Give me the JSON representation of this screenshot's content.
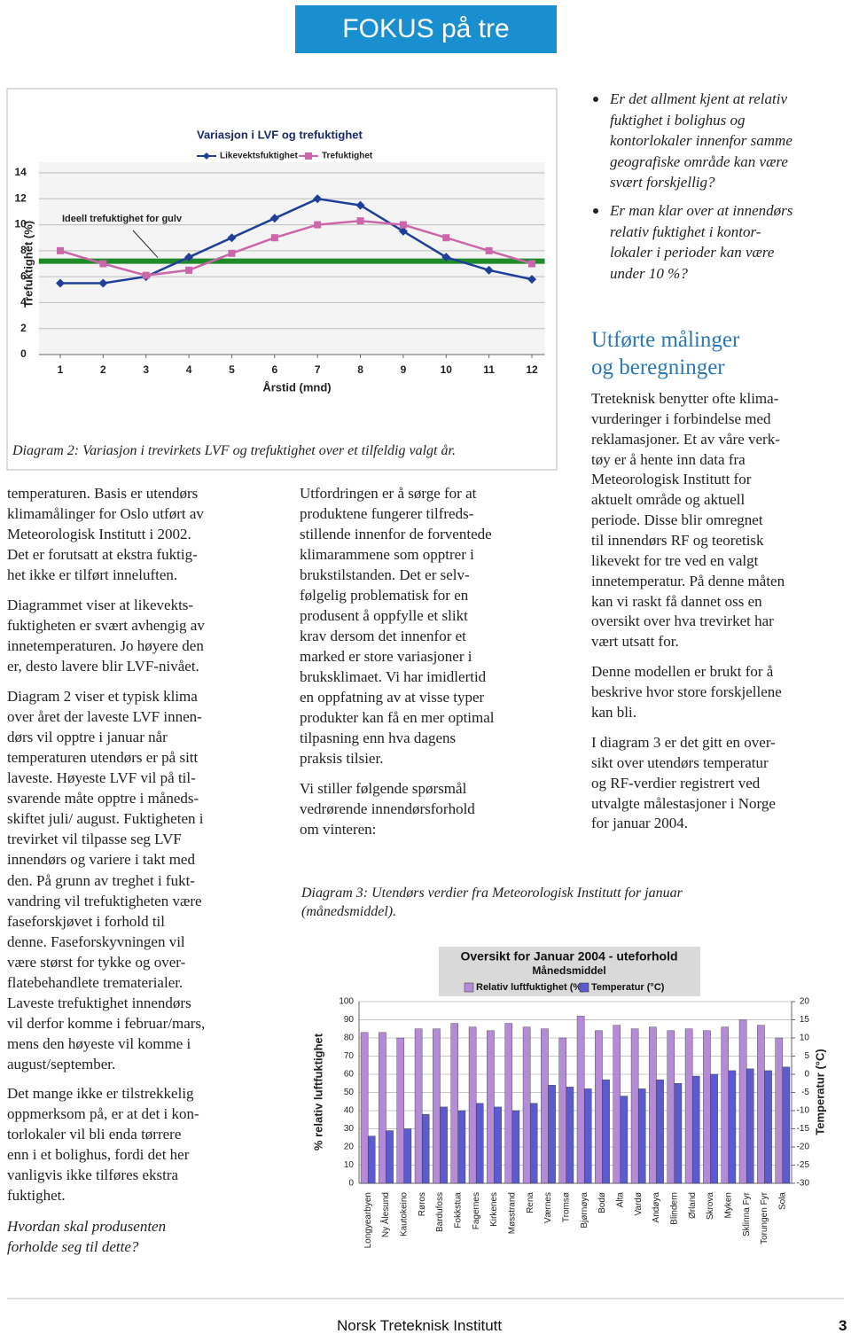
{
  "header": {
    "title": "FOKUS på tre"
  },
  "questions": [
    [
      "Er det allment kjent at relativ",
      "fuktighet i bolighus og",
      "kontorlokaler innenfor samme",
      "geografiske område kan være",
      "svært forskjellig?"
    ],
    [
      "Er man klar over at innendørs",
      "relativ fuktighet i kontor-",
      "lokaler i perioder kan være",
      "under 10 %?"
    ]
  ],
  "section": {
    "heading": [
      "Utførte målinger",
      "og beregninger"
    ],
    "paragraphs": [
      [
        "Treteknisk benytter ofte klima-",
        "vurderinger i forbindelse med",
        "reklamasjoner. Et av våre verk-",
        "tøy er å hente inn data fra",
        "Meteorologisk Institutt for",
        "aktuelt område og aktuell",
        "periode. Disse blir omregnet",
        "til innendørs RF og teoretisk",
        "likevekt for tre ved en valgt",
        "innetemperatur. På denne måten",
        "kan vi raskt få dannet oss en",
        "oversikt over hva trevirket har",
        "vært utsatt for."
      ],
      [
        "Denne modellen er brukt for å",
        "beskrive hvor store forskjellene",
        "kan bli."
      ],
      [
        "I diagram 3 er det gitt en over-",
        "sikt over utendørs temperatur",
        "og RF-verdier registrert ved",
        "utvalgte målestasjoner i Norge",
        "for januar 2004."
      ]
    ]
  },
  "left_column": {
    "paragraphs": [
      [
        "temperaturen. Basis er utendørs",
        "klimamålinger for Oslo utført av",
        "Meteorologisk Institutt i 2002.",
        "Det er forutsatt at ekstra fuktig-",
        "het ikke er tilført inneluften."
      ],
      [
        "Diagrammet viser at likevekts-",
        "fuktigheten er svært avhengig av",
        "innetemperaturen. Jo høyere den",
        "er, desto lavere blir LVF-nivået."
      ],
      [
        "Diagram 2 viser et typisk klima",
        "over året der laveste LVF innen-",
        "dørs vil opptre i januar når",
        "temperaturen utendørs er på sitt",
        "laveste. Høyeste LVF vil på til-",
        "svarende måte opptre i måneds-",
        "skiftet juli/ august. Fuktigheten i",
        "trevirket vil tilpasse seg LVF",
        "innendørs og variere i takt med",
        "den. På grunn av treghet i fukt-",
        "vandring vil trefuktigheten være",
        "faseforskjøvet i forhold til",
        "denne. Faseforskyvningen vil",
        "være størst for tykke og over-",
        "flatebehandlete trematerialer.",
        "Laveste trefuktighet innendørs",
        "vil derfor komme i februar/mars,",
        "mens den høyeste vil komme i",
        "august/september."
      ],
      [
        "Det mange ikke er tilstrekkelig",
        "oppmerksom på, er at det i kon-",
        "torlokaler vil bli enda tørrere",
        "enn i et bolighus, fordi det her",
        "vanligvis ikke tilføres ekstra",
        "fuktighet."
      ]
    ],
    "closing_question": [
      "Hvordan skal produsenten",
      "forholde seg til dette?"
    ]
  },
  "middle_column": {
    "paragraphs": [
      [
        "Utfordringen er å sørge for at",
        "produktene fungerer tilfreds-",
        "stillende innenfor de forventede",
        "klimarammene som opptrer i",
        "brukstilstanden. Det er selv-",
        "følgelig problematisk for en",
        "produsent å oppfylle et slikt",
        "krav dersom det innenfor et",
        "marked er store variasjoner i",
        "bruksklimaet. Vi har imidlertid",
        "en oppfatning av at visse typer",
        "produkter kan få en mer optimal",
        "tilpasning enn hva dagens",
        "praksis tilsier."
      ],
      [
        "Vi stiller følgende spørsmål",
        "vedrørende innendørsforhold",
        "om vinteren:"
      ]
    ]
  },
  "captions": {
    "diagram2": "Diagram 2: Variasjon i trevirkets LVF og trefuktighet over et tilfeldig valgt år.",
    "diagram3": [
      "Diagram 3: Utendørs verdier fra Meteorologisk Institutt for januar",
      "(månedsmiddel)."
    ]
  },
  "chart_data": [
    {
      "type": "line",
      "title": "Variasjon i LVF og trefuktighet",
      "x_label": "Årstid (mnd)",
      "y_label": "Trefuktighet (%)",
      "x": [
        1,
        2,
        3,
        4,
        5,
        6,
        7,
        8,
        9,
        10,
        11,
        12
      ],
      "xlim": [
        0.5,
        12.3
      ],
      "xticks": [
        1,
        2,
        3,
        4,
        5,
        6,
        7,
        8,
        9,
        10,
        11,
        12
      ],
      "ylim": [
        0,
        14
      ],
      "yticks": [
        0,
        2,
        4,
        6,
        8,
        10,
        12,
        14
      ],
      "grid": true,
      "series": [
        {
          "name": "Likevektsfuktighet",
          "color": "#1f3f99",
          "values": [
            5.5,
            5.5,
            6,
            7.5,
            9,
            10.5,
            12,
            11.5,
            9.5,
            7.5,
            6.5,
            5.8
          ]
        },
        {
          "name": "Trefuktighet",
          "color": "#cc66aa",
          "values": [
            8,
            7,
            6.1,
            6.5,
            7.8,
            9,
            10,
            10.3,
            10,
            9,
            8,
            7
          ]
        }
      ],
      "reference_line": {
        "label": "Ideell trefuktighet for gulv",
        "value": 7.2,
        "color": "#1f8a2a"
      }
    },
    {
      "type": "bar",
      "title": "Oversikt for Januar 2004 - uteforhold",
      "subtitle": "Månedsmiddel",
      "y_label": "% relativ luftfuktighet",
      "y2_label": "Temperatur (°C)",
      "categories": [
        "Longyearbyen",
        "Ny Ålesund",
        "Kautokeino",
        "Røros",
        "Bardufoss",
        "Fokkstua",
        "Fagernes",
        "Kirkenes",
        "Møsstrand",
        "Rena",
        "Værnes",
        "Tromsø",
        "Bjørnøya",
        "Bodø",
        "Alta",
        "Vardø",
        "Andøya",
        "Blindern",
        "Ørland",
        "Skrova",
        "Myken",
        "Sklinna Fyr",
        "Torungen Fyr",
        "Sola"
      ],
      "ylim": [
        0,
        100
      ],
      "yticks": [
        0,
        10,
        20,
        30,
        40,
        50,
        60,
        70,
        80,
        90,
        100
      ],
      "y2lim": [
        -30,
        20
      ],
      "y2ticks": [
        -30,
        -25,
        -20,
        -15,
        -10,
        -5,
        0,
        5,
        10,
        15,
        20
      ],
      "grid": true,
      "series": [
        {
          "name": "Relativ luftfuktighet (%)",
          "color": "#b58ad6",
          "values": [
            83,
            83,
            80,
            85,
            85,
            88,
            86,
            84,
            88,
            86,
            85,
            80,
            92,
            84,
            87,
            85,
            86,
            84,
            85,
            84,
            86,
            90,
            87,
            80
          ]
        },
        {
          "name": "Temperatur (°C)",
          "color": "#5b5bd0",
          "axis": "y2",
          "values": [
            -17,
            -15.5,
            -15,
            -11,
            -9,
            -10,
            -8,
            -9,
            -10,
            -8,
            -3,
            -3.5,
            -4,
            -1.5,
            -6,
            -4,
            -1.5,
            -2.5,
            -0.5,
            0,
            1,
            1.5,
            1,
            2
          ]
        }
      ]
    }
  ],
  "footer": {
    "publisher": "Norsk Treteknisk Institutt",
    "page": 3
  }
}
